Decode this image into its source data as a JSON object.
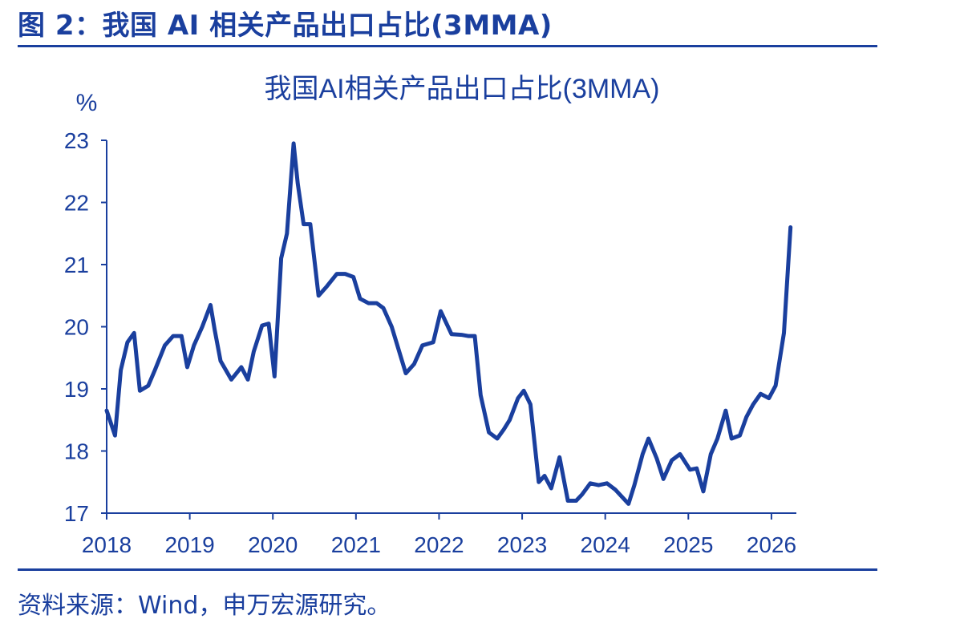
{
  "header": {
    "title": "图 2：我国 AI 相关产品出口占比(3MMA)"
  },
  "footer": {
    "source": "资料来源：Wind，申万宏源研究。"
  },
  "chart_data": {
    "type": "line",
    "title": "我国AI相关产品出口占比(3MMA)",
    "ylabel": "%",
    "xlabel": "",
    "ylim": [
      17,
      23
    ],
    "xlim": [
      2018,
      2026.3
    ],
    "yticks": [
      "17",
      "18",
      "19",
      "20",
      "21",
      "22",
      "23"
    ],
    "xticks": [
      "2018",
      "2019",
      "2020",
      "2021",
      "2022",
      "2023",
      "2024",
      "2025",
      "2026"
    ],
    "grid": false,
    "legend": "none",
    "line_color": "#1a3f9e",
    "series": [
      {
        "x": [
          2018.0,
          2018.1,
          2018.17,
          2018.25,
          2018.33,
          2018.4,
          2018.5,
          2018.58,
          2018.7,
          2018.8,
          2018.9,
          2018.97,
          2019.05,
          2019.15,
          2019.25,
          2019.3,
          2019.37,
          2019.5,
          2019.62,
          2019.7,
          2019.77,
          2019.87,
          2019.95,
          2020.02,
          2020.1,
          2020.17,
          2020.25,
          2020.3,
          2020.37,
          2020.45,
          2020.55,
          2020.65,
          2020.77,
          2020.87,
          2020.97,
          2021.05,
          2021.15,
          2021.25,
          2021.33,
          2021.43,
          2021.6,
          2021.7,
          2021.8,
          2021.93,
          2022.02,
          2022.15,
          2022.27,
          2022.35,
          2022.43,
          2022.5,
          2022.6,
          2022.7,
          2022.78,
          2022.85,
          2022.95,
          2023.02,
          2023.1,
          2023.2,
          2023.27,
          2023.35,
          2023.45,
          2023.55,
          2023.65,
          2023.72,
          2023.82,
          2023.92,
          2024.02,
          2024.12,
          2024.28,
          2024.35,
          2024.45,
          2024.52,
          2024.62,
          2024.7,
          2024.8,
          2024.9,
          2025.02,
          2025.1,
          2025.18,
          2025.27,
          2025.35,
          2025.45,
          2025.52,
          2025.62,
          2025.7,
          2025.78,
          2025.87,
          2025.97,
          2026.05,
          2026.15,
          2026.23
        ],
        "y": [
          18.65,
          18.25,
          19.3,
          19.75,
          19.9,
          18.97,
          19.05,
          19.3,
          19.7,
          19.85,
          19.85,
          19.35,
          19.7,
          20.0,
          20.35,
          19.95,
          19.45,
          19.15,
          19.35,
          19.15,
          19.6,
          20.02,
          20.05,
          19.2,
          21.1,
          21.5,
          22.95,
          22.3,
          21.65,
          21.65,
          20.5,
          20.65,
          20.85,
          20.85,
          20.8,
          20.45,
          20.38,
          20.38,
          20.3,
          20.0,
          19.25,
          19.4,
          19.7,
          19.75,
          20.25,
          19.88,
          19.87,
          19.85,
          19.85,
          18.9,
          18.3,
          18.2,
          18.35,
          18.5,
          18.85,
          18.97,
          18.75,
          17.5,
          17.6,
          17.4,
          17.9,
          17.2,
          17.2,
          17.3,
          17.48,
          17.45,
          17.48,
          17.38,
          17.15,
          17.45,
          17.95,
          18.2,
          17.88,
          17.55,
          17.85,
          17.95,
          17.7,
          17.72,
          17.35,
          17.95,
          18.2,
          18.65,
          18.2,
          18.25,
          18.55,
          18.75,
          18.92,
          18.85,
          19.05,
          19.9,
          21.6
        ]
      }
    ]
  }
}
